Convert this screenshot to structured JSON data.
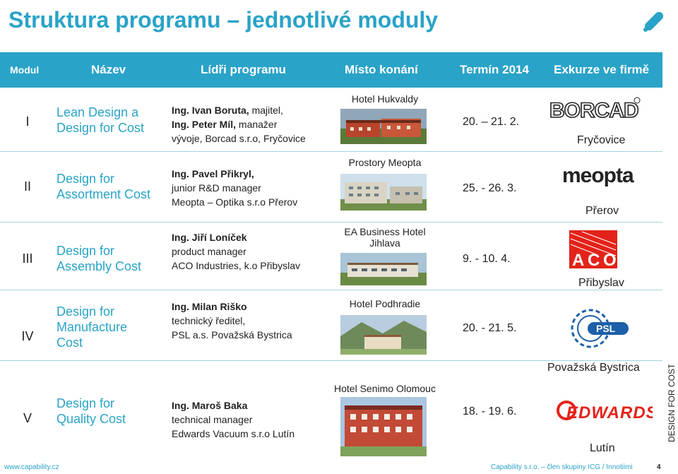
{
  "title": "Struktura programu – jednotlivé moduly",
  "header": {
    "modul": "Modul",
    "nazev": "Název",
    "lidri": "Lídři programu",
    "misto": "Místo konání",
    "termin": "Termín 2014",
    "exkurze": "Exkurze ve firmě"
  },
  "rows": [
    {
      "roman": "I",
      "name": [
        "Lean Design a",
        "Design for Cost"
      ],
      "leaders": [
        {
          "bold": "Ing. Ivan Boruta,",
          "rest": " majitel,"
        },
        {
          "bold": "Ing. Peter Míl,",
          "rest": " manažer"
        },
        {
          "bold": "",
          "rest": "vývoje, Borcad s.r.o, Fryčovice"
        }
      ],
      "place": "Hotel Hukvaldy",
      "date": "20. – 21. 2.",
      "company_logo": "borcad-logo",
      "city": "Fryčovice"
    },
    {
      "roman": "II",
      "name": [
        "Design for",
        "Assortment  Cost"
      ],
      "leaders": [
        {
          "bold": "Ing. Pavel Přikryl,",
          "rest": ""
        },
        {
          "bold": "",
          "rest": "junior R&D manager"
        },
        {
          "bold": "",
          "rest": "Meopta – Optika s.r.o Přerov"
        }
      ],
      "place": "Prostory Meopta",
      "date": "25. - 26. 3.",
      "company_logo": "meopta-logo",
      "city": "Přerov"
    },
    {
      "roman": "III",
      "name": [
        "Design for",
        "Assembly Cost"
      ],
      "leaders": [
        {
          "bold": "Ing. Jiří Loníček",
          "rest": ""
        },
        {
          "bold": "",
          "rest": "product manager"
        },
        {
          "bold": "",
          "rest": "ACO Industries, k.o Přibyslav"
        }
      ],
      "place": "EA Business Hotel Jihlava",
      "date": "9. - 10. 4.",
      "company_logo": "aco-logo",
      "city": "Přibyslav"
    },
    {
      "roman": "IV",
      "name": [
        "Design for",
        "Manufacture",
        "Cost"
      ],
      "leaders": [
        {
          "bold": "Ing. Milan Riško",
          "rest": ""
        },
        {
          "bold": "",
          "rest": "technický ředitel,"
        },
        {
          "bold": "",
          "rest": "PSL a.s. Považská Bystrica"
        }
      ],
      "place": "Hotel Podhradie",
      "date": "20. - 21. 5.",
      "company_logo": "psl-logo",
      "city": "Považská Bystrica"
    },
    {
      "roman": "V",
      "name": [
        "Design for",
        "Quality Cost"
      ],
      "leaders": [
        {
          "bold": "Ing. Maroš Baka",
          "rest": ""
        },
        {
          "bold": "",
          "rest": "technical manager"
        },
        {
          "bold": "",
          "rest": "Edwards Vacuum s.r.o Lutín"
        }
      ],
      "place": "Hotel Senimo Olomouc",
      "date": "18. - 19. 6.",
      "company_logo": "edwards-logo",
      "city": "Lutín"
    }
  ],
  "side_text": "DESIGN FOR COST",
  "footer": {
    "url": "www.capability.cz",
    "company": "Capability s.r.o. – člen skupiny  ICG / Innotiimi",
    "page": "4"
  },
  "colors": {
    "accent": "#2aa3c8",
    "text": "#1a1a1a",
    "rule": "#9fd3e3"
  }
}
